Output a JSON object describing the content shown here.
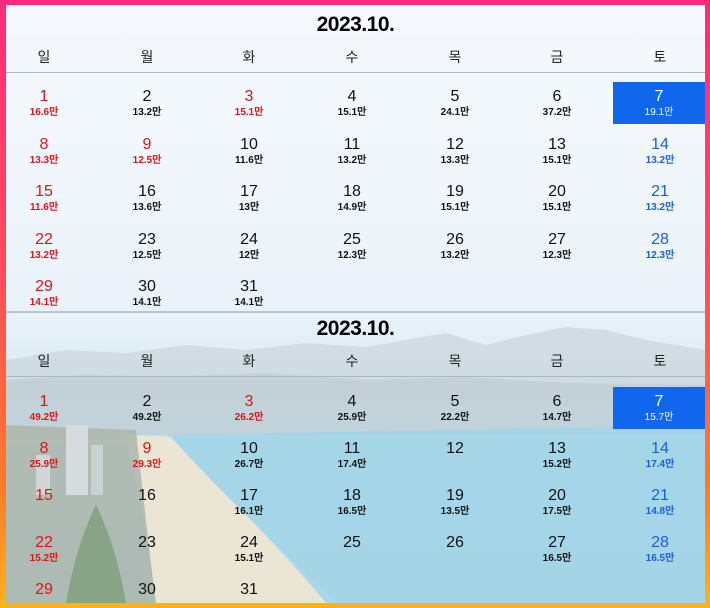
{
  "calendars": [
    {
      "title": "2023.10.",
      "weekdays": [
        "일",
        "월",
        "화",
        "수",
        "목",
        "금",
        "토"
      ],
      "weeks": [
        [
          {
            "d": "1",
            "p": "16.6만",
            "c": "red"
          },
          {
            "d": "2",
            "p": "13.2만",
            "c": ""
          },
          {
            "d": "3",
            "p": "15.1만",
            "c": "red"
          },
          {
            "d": "4",
            "p": "15.1만",
            "c": ""
          },
          {
            "d": "5",
            "p": "24.1만",
            "c": ""
          },
          {
            "d": "6",
            "p": "37.2만",
            "c": ""
          },
          {
            "d": "7",
            "p": "19.1만",
            "c": "selected"
          }
        ],
        [
          {
            "d": "8",
            "p": "13.3만",
            "c": "red"
          },
          {
            "d": "9",
            "p": "12.5만",
            "c": "red"
          },
          {
            "d": "10",
            "p": "11.6만",
            "c": ""
          },
          {
            "d": "11",
            "p": "13.2만",
            "c": ""
          },
          {
            "d": "12",
            "p": "13.3만",
            "c": ""
          },
          {
            "d": "13",
            "p": "15.1만",
            "c": ""
          },
          {
            "d": "14",
            "p": "13.2만",
            "c": "blue"
          }
        ],
        [
          {
            "d": "15",
            "p": "11.6만",
            "c": "red"
          },
          {
            "d": "16",
            "p": "13.6만",
            "c": ""
          },
          {
            "d": "17",
            "p": "13만",
            "c": ""
          },
          {
            "d": "18",
            "p": "14.9만",
            "c": ""
          },
          {
            "d": "19",
            "p": "15.1만",
            "c": ""
          },
          {
            "d": "20",
            "p": "15.1만",
            "c": ""
          },
          {
            "d": "21",
            "p": "13.2만",
            "c": "blue"
          }
        ],
        [
          {
            "d": "22",
            "p": "13.2만",
            "c": "red"
          },
          {
            "d": "23",
            "p": "12.5만",
            "c": ""
          },
          {
            "d": "24",
            "p": "12만",
            "c": ""
          },
          {
            "d": "25",
            "p": "12.3만",
            "c": ""
          },
          {
            "d": "26",
            "p": "13.2만",
            "c": ""
          },
          {
            "d": "27",
            "p": "12.3만",
            "c": ""
          },
          {
            "d": "28",
            "p": "12.3만",
            "c": "blue"
          }
        ],
        [
          {
            "d": "29",
            "p": "14.1만",
            "c": "red"
          },
          {
            "d": "30",
            "p": "14.1만",
            "c": ""
          },
          {
            "d": "31",
            "p": "14.1만",
            "c": ""
          }
        ]
      ]
    },
    {
      "title": "2023.10.",
      "weekdays": [
        "일",
        "월",
        "화",
        "수",
        "목",
        "금",
        "토"
      ],
      "weeks": [
        [
          {
            "d": "1",
            "p": "49.2만",
            "c": "red"
          },
          {
            "d": "2",
            "p": "49.2만",
            "c": ""
          },
          {
            "d": "3",
            "p": "26.2만",
            "c": "red"
          },
          {
            "d": "4",
            "p": "25.9만",
            "c": ""
          },
          {
            "d": "5",
            "p": "22.2만",
            "c": ""
          },
          {
            "d": "6",
            "p": "14.7만",
            "c": ""
          },
          {
            "d": "7",
            "p": "15.7만",
            "c": "selected"
          }
        ],
        [
          {
            "d": "8",
            "p": "25.9만",
            "c": "red"
          },
          {
            "d": "9",
            "p": "29.3만",
            "c": "red"
          },
          {
            "d": "10",
            "p": "26.7만",
            "c": ""
          },
          {
            "d": "11",
            "p": "17.4만",
            "c": ""
          },
          {
            "d": "12",
            "p": "",
            "c": ""
          },
          {
            "d": "13",
            "p": "15.2만",
            "c": ""
          },
          {
            "d": "14",
            "p": "17.4만",
            "c": "blue"
          }
        ],
        [
          {
            "d": "15",
            "p": "",
            "c": "red"
          },
          {
            "d": "16",
            "p": "",
            "c": ""
          },
          {
            "d": "17",
            "p": "16.1만",
            "c": ""
          },
          {
            "d": "18",
            "p": "16.5만",
            "c": ""
          },
          {
            "d": "19",
            "p": "13.5만",
            "c": ""
          },
          {
            "d": "20",
            "p": "17.5만",
            "c": ""
          },
          {
            "d": "21",
            "p": "14.8만",
            "c": "blue"
          }
        ],
        [
          {
            "d": "22",
            "p": "15.2만",
            "c": "red"
          },
          {
            "d": "23",
            "p": "",
            "c": ""
          },
          {
            "d": "24",
            "p": "15.1만",
            "c": ""
          },
          {
            "d": "25",
            "p": "",
            "c": ""
          },
          {
            "d": "26",
            "p": "",
            "c": ""
          },
          {
            "d": "27",
            "p": "16.5만",
            "c": ""
          },
          {
            "d": "28",
            "p": "16.5만",
            "c": "blue"
          }
        ],
        [
          {
            "d": "29",
            "p": "",
            "c": "red"
          },
          {
            "d": "30",
            "p": "",
            "c": ""
          },
          {
            "d": "31",
            "p": "",
            "c": ""
          }
        ]
      ]
    }
  ],
  "colors": {
    "sunday": "#e01515",
    "saturday": "#1a5fe0",
    "selected_bg": "#1166ee"
  }
}
